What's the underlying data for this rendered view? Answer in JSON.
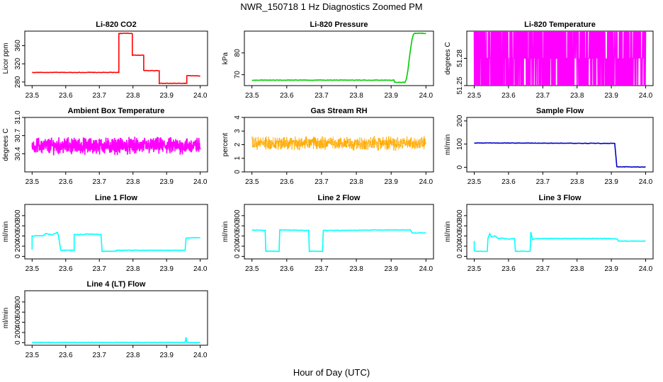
{
  "figure": {
    "title": "NWR_150718  1 Hz Diagnostics Zoomed PM",
    "xlabel": "Hour of Day (UTC)"
  },
  "chart_data": [
    {
      "type": "line",
      "title": "Li-820 CO2",
      "ylabel": "Licor ppm",
      "xlim": [
        23.5,
        24.0
      ],
      "ylim": [
        272,
        392
      ],
      "yticks": [
        "280",
        "320",
        "360"
      ],
      "ytick_values": [
        280,
        320,
        360
      ],
      "color": "#ff0000",
      "x": [
        23.5,
        23.758,
        23.758,
        23.798,
        23.798,
        23.832,
        23.832,
        23.878,
        23.878,
        23.96,
        23.96,
        24.0
      ],
      "y": [
        301,
        301,
        387,
        387,
        339,
        339,
        305,
        305,
        277,
        277,
        294,
        293
      ]
    },
    {
      "type": "line",
      "title": "Li-820 Pressure",
      "ylabel": "kPa",
      "xlim": [
        23.5,
        24.0
      ],
      "ylim": [
        65,
        90
      ],
      "yticks": [
        "70",
        "80"
      ],
      "ytick_values": [
        70,
        80
      ],
      "color": "#00cc00",
      "x": [
        23.5,
        23.908,
        23.91,
        23.94,
        23.944,
        23.948,
        23.952,
        23.956,
        23.96,
        23.964,
        23.968,
        24.0
      ],
      "y": [
        67.5,
        67.5,
        66.5,
        66.5,
        68,
        72,
        77,
        82,
        86,
        88.5,
        89,
        89
      ]
    },
    {
      "type": "line",
      "title": "Li-820 Temperature",
      "ylabel": "degrees C",
      "xlim": [
        23.5,
        24.0
      ],
      "ylim": [
        51.25,
        51.31
      ],
      "yticks": [
        "51.25",
        "51.28"
      ],
      "ytick_values": [
        51.25,
        51.28
      ],
      "color": "#ff00ff",
      "levels": [
        51.25,
        51.28,
        51.31
      ],
      "x_range": [
        23.5,
        24.0
      ],
      "n_points": 900
    },
    {
      "type": "line",
      "title": "Ambient Box Temperature",
      "ylabel": "degrees C",
      "xlim": [
        23.5,
        24.0
      ],
      "ylim": [
        30.1,
        31.0
      ],
      "yticks": [
        "30.4",
        "30.7",
        "31.0"
      ],
      "ytick_values": [
        30.4,
        30.7,
        31.0
      ],
      "color": "#ff00ff",
      "mean": 30.53,
      "spread": 0.2,
      "x_range": [
        23.5,
        24.0
      ],
      "n_points": 900
    },
    {
      "type": "line",
      "title": "Gas Stream RH",
      "ylabel": "percent",
      "xlim": [
        23.5,
        24.0
      ],
      "ylim": [
        0,
        4
      ],
      "yticks": [
        "0",
        "1",
        "2",
        "3",
        "4"
      ],
      "ytick_values": [
        0,
        1,
        2,
        3,
        4
      ],
      "color": "#ffaa00",
      "mean": 2.1,
      "spread": 0.7,
      "x_range": [
        23.5,
        24.0
      ],
      "n_points": 900
    },
    {
      "type": "line",
      "title": "Sample Flow",
      "ylabel": "ml/min",
      "xlim": [
        23.5,
        24.0
      ],
      "ylim": [
        -20,
        215
      ],
      "yticks": [
        "0",
        "100",
        "200"
      ],
      "ytick_values": [
        0,
        100,
        200
      ],
      "color": "#0000cc",
      "x": [
        23.5,
        23.91,
        23.91,
        23.916,
        24.0
      ],
      "y": [
        105,
        103,
        100,
        2,
        1
      ]
    },
    {
      "type": "line",
      "title": "Line 1 Flow",
      "ylabel": "ml/min",
      "xlim": [
        23.5,
        24.0
      ],
      "ylim": [
        -50,
        1020
      ],
      "yticks": [
        "0",
        "200",
        "400",
        "600",
        "800"
      ],
      "ytick_values": [
        0,
        200,
        400,
        600,
        800
      ],
      "color": "#00ffff",
      "x": [
        23.5,
        23.5,
        23.535,
        23.54,
        23.56,
        23.575,
        23.578,
        23.585,
        23.625,
        23.625,
        23.655,
        23.66,
        23.705,
        23.708,
        23.75,
        23.752,
        23.955,
        23.958,
        24.0
      ],
      "y": [
        130,
        400,
        410,
        450,
        420,
        470,
        420,
        120,
        120,
        430,
        430,
        440,
        430,
        100,
        100,
        120,
        120,
        360,
        370
      ]
    },
    {
      "type": "line",
      "title": "Line 2 Flow",
      "ylabel": "ml/min",
      "xlim": [
        23.5,
        24.0
      ],
      "ylim": [
        -50,
        1020
      ],
      "yticks": [
        "0",
        "200",
        "400",
        "600",
        "800"
      ],
      "ytick_values": [
        0,
        200,
        400,
        600,
        800
      ],
      "color": "#00ffff",
      "x": [
        23.5,
        23.538,
        23.54,
        23.578,
        23.58,
        23.663,
        23.665,
        23.703,
        23.705,
        23.955,
        23.96,
        24.0
      ],
      "y": [
        520,
        510,
        100,
        100,
        520,
        510,
        100,
        100,
        510,
        520,
        460,
        460
      ]
    },
    {
      "type": "line",
      "title": "Line 3 Flow",
      "ylabel": "ml/min",
      "xlim": [
        23.5,
        24.0
      ],
      "ylim": [
        -50,
        1020
      ],
      "yticks": [
        "0",
        "200",
        "400",
        "600",
        "800"
      ],
      "ytick_values": [
        0,
        200,
        400,
        600,
        800
      ],
      "color": "#00ffff",
      "x": [
        23.5,
        23.5,
        23.502,
        23.538,
        23.54,
        23.545,
        23.55,
        23.56,
        23.57,
        23.58,
        23.6,
        23.618,
        23.62,
        23.663,
        23.665,
        23.67,
        23.68,
        23.9,
        23.918,
        23.92,
        24.0
      ],
      "y": [
        300,
        110,
        100,
        100,
        350,
        450,
        380,
        400,
        350,
        360,
        340,
        350,
        100,
        100,
        480,
        330,
        350,
        350,
        340,
        300,
        300
      ]
    },
    {
      "type": "line",
      "title": "Line 4 (LT) Flow",
      "ylabel": "ml/min",
      "xlim": [
        23.5,
        24.0
      ],
      "ylim": [
        -50,
        1020
      ],
      "yticks": [
        "0",
        "200",
        "400",
        "600",
        "800"
      ],
      "ytick_values": [
        0,
        200,
        400,
        600,
        800
      ],
      "color": "#00ffff",
      "x": [
        23.5,
        23.955,
        23.958,
        23.96,
        24.0
      ],
      "y": [
        5,
        5,
        110,
        5,
        5
      ]
    }
  ],
  "x_axis": {
    "ticks": [
      "23.5",
      "23.6",
      "23.7",
      "23.8",
      "23.9",
      "24.0"
    ],
    "tick_values": [
      23.5,
      23.6,
      23.7,
      23.8,
      23.9,
      24.0
    ]
  }
}
